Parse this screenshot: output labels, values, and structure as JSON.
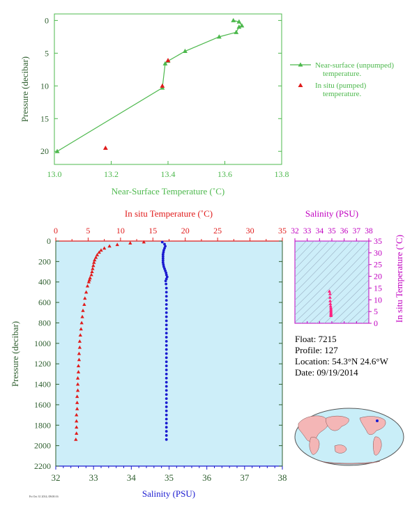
{
  "colors": {
    "near_surface": "#4cb84c",
    "in_situ_temp": "#e01b1b",
    "salinity": "#1a1ad0",
    "salinity_axis": "#c000c0",
    "panel_bg": "#cdeef9",
    "axis_green": "#2e5e2e",
    "ts_points": "#ff2080"
  },
  "info": {
    "float": "Float:  7215",
    "profile": "Profile:  127",
    "location": "Location:  54.3°N  24.6°W",
    "date": "Date:  09/19/2014"
  },
  "footer": {
    "stamp": "Fri Oct 31 2014, 08:00:16"
  },
  "chart_data": [
    {
      "type": "line",
      "xlabel": "Near-Surface Temperature (˚C)",
      "ylabel": "Pressure (decibar)",
      "xlim": [
        13.0,
        13.8
      ],
      "ylim": [
        22,
        -1
      ],
      "xticks": [
        "13.0",
        "13.2",
        "13.4",
        "13.6",
        "13.8"
      ],
      "yticks": [
        "0",
        "5",
        "10",
        "15",
        "20"
      ],
      "legend_position": "right",
      "series": [
        {
          "name": "Near-surface (unpumped) temperature.",
          "marker": "triangle",
          "points": [
            [
              13.63,
              0.0
            ],
            [
              13.65,
              0.2
            ],
            [
              13.66,
              0.8
            ],
            [
              13.65,
              1.0
            ],
            [
              13.64,
              1.8
            ],
            [
              13.58,
              2.5
            ],
            [
              13.46,
              4.7
            ],
            [
              13.4,
              6.2
            ],
            [
              13.39,
              6.6
            ],
            [
              13.38,
              10.3
            ],
            [
              13.01,
              20.0
            ]
          ]
        },
        {
          "name": "In situ (pumped) temperature.",
          "marker": "triangle",
          "points": [
            [
              13.4,
              6.1
            ],
            [
              13.38,
              10.0
            ],
            [
              13.18,
              19.5
            ]
          ]
        }
      ]
    },
    {
      "type": "scatter",
      "ylabel": "Pressure (decibar)",
      "ylim": [
        2200,
        0
      ],
      "yticks": [
        "0",
        "200",
        "400",
        "600",
        "800",
        "1000",
        "1200",
        "1400",
        "1600",
        "1800",
        "2000",
        "2200"
      ],
      "top_axis": {
        "label": "In situ Temperature (˚C)",
        "range": [
          0,
          35
        ],
        "ticks": [
          "0",
          "5",
          "10",
          "15",
          "20",
          "25",
          "30",
          "35"
        ]
      },
      "bottom_axis": {
        "label": "Salinity (PSU)",
        "range": [
          32,
          38
        ],
        "ticks": [
          "32",
          "33",
          "34",
          "35",
          "36",
          "37",
          "38"
        ]
      },
      "series": [
        {
          "axis": "temperature",
          "marker": "triangle",
          "points": [
            [
              13.6,
              10
            ],
            [
              11.5,
              20
            ],
            [
              9.5,
              35
            ],
            [
              8.3,
              50
            ],
            [
              7.5,
              70
            ],
            [
              7.0,
              90
            ],
            [
              6.7,
              110
            ],
            [
              6.4,
              135
            ],
            [
              6.2,
              160
            ],
            [
              6.0,
              185
            ],
            [
              5.9,
              210
            ],
            [
              5.8,
              240
            ],
            [
              5.7,
              270
            ],
            [
              5.6,
              300
            ],
            [
              5.5,
              330
            ],
            [
              5.3,
              360
            ],
            [
              5.2,
              380
            ],
            [
              5.1,
              400
            ],
            [
              4.9,
              440
            ],
            [
              4.7,
              500
            ],
            [
              4.5,
              560
            ],
            [
              4.4,
              620
            ],
            [
              4.2,
              680
            ],
            [
              4.1,
              740
            ],
            [
              4.0,
              800
            ],
            [
              3.9,
              860
            ],
            [
              3.8,
              920
            ],
            [
              3.7,
              980
            ],
            [
              3.7,
              1040
            ],
            [
              3.6,
              1100
            ],
            [
              3.6,
              1160
            ],
            [
              3.5,
              1220
            ],
            [
              3.5,
              1280
            ],
            [
              3.4,
              1340
            ],
            [
              3.4,
              1400
            ],
            [
              3.4,
              1460
            ],
            [
              3.3,
              1520
            ],
            [
              3.3,
              1580
            ],
            [
              3.3,
              1640
            ],
            [
              3.2,
              1700
            ],
            [
              3.2,
              1760
            ],
            [
              3.2,
              1820
            ],
            [
              3.2,
              1880
            ],
            [
              3.1,
              1940
            ]
          ]
        },
        {
          "axis": "salinity",
          "marker": "dot",
          "points": [
            [
              34.82,
              10
            ],
            [
              34.88,
              30
            ],
            [
              34.9,
              50
            ],
            [
              34.88,
              70
            ],
            [
              34.86,
              90
            ],
            [
              34.85,
              110
            ],
            [
              34.84,
              130
            ],
            [
              34.84,
              150
            ],
            [
              34.84,
              170
            ],
            [
              34.84,
              190
            ],
            [
              34.84,
              210
            ],
            [
              34.85,
              230
            ],
            [
              34.86,
              250
            ],
            [
              34.88,
              270
            ],
            [
              34.9,
              290
            ],
            [
              34.92,
              310
            ],
            [
              34.93,
              330
            ],
            [
              34.95,
              350
            ],
            [
              34.93,
              370
            ],
            [
              34.91,
              390
            ],
            [
              34.92,
              420
            ],
            [
              34.93,
              460
            ],
            [
              34.93,
              500
            ],
            [
              34.93,
              540
            ],
            [
              34.93,
              580
            ],
            [
              34.93,
              620
            ],
            [
              34.93,
              660
            ],
            [
              34.93,
              700
            ],
            [
              34.93,
              740
            ],
            [
              34.93,
              780
            ],
            [
              34.93,
              820
            ],
            [
              34.93,
              860
            ],
            [
              34.93,
              900
            ],
            [
              34.93,
              940
            ],
            [
              34.93,
              980
            ],
            [
              34.93,
              1020
            ],
            [
              34.93,
              1060
            ],
            [
              34.93,
              1100
            ],
            [
              34.93,
              1140
            ],
            [
              34.93,
              1180
            ],
            [
              34.93,
              1220
            ],
            [
              34.93,
              1260
            ],
            [
              34.93,
              1300
            ],
            [
              34.93,
              1340
            ],
            [
              34.93,
              1380
            ],
            [
              34.93,
              1420
            ],
            [
              34.93,
              1460
            ],
            [
              34.93,
              1500
            ],
            [
              34.93,
              1540
            ],
            [
              34.93,
              1580
            ],
            [
              34.93,
              1620
            ],
            [
              34.93,
              1660
            ],
            [
              34.93,
              1700
            ],
            [
              34.93,
              1740
            ],
            [
              34.93,
              1780
            ],
            [
              34.93,
              1820
            ],
            [
              34.93,
              1860
            ],
            [
              34.93,
              1900
            ],
            [
              34.93,
              1940
            ]
          ]
        }
      ]
    },
    {
      "type": "scatter",
      "xlabel": "Salinity (PSU)",
      "ylabel": "In situ Temperature (˚C)",
      "xlim": [
        32,
        38
      ],
      "ylim": [
        0,
        35
      ],
      "xticks": [
        "32",
        "33",
        "34",
        "35",
        "36",
        "37",
        "38"
      ],
      "yticks": [
        "0",
        "5",
        "10",
        "15",
        "20",
        "25",
        "30",
        "35"
      ],
      "points": [
        [
          34.8,
          13.6
        ],
        [
          34.85,
          12.5
        ],
        [
          34.85,
          11.0
        ],
        [
          34.86,
          9.5
        ],
        [
          34.88,
          8.3
        ],
        [
          34.9,
          7.3
        ],
        [
          34.92,
          6.5
        ],
        [
          34.93,
          5.9
        ],
        [
          34.93,
          5.3
        ],
        [
          34.93,
          4.8
        ],
        [
          34.93,
          4.3
        ],
        [
          34.93,
          3.9
        ],
        [
          34.93,
          3.5
        ],
        [
          34.93,
          3.2
        ]
      ]
    }
  ]
}
